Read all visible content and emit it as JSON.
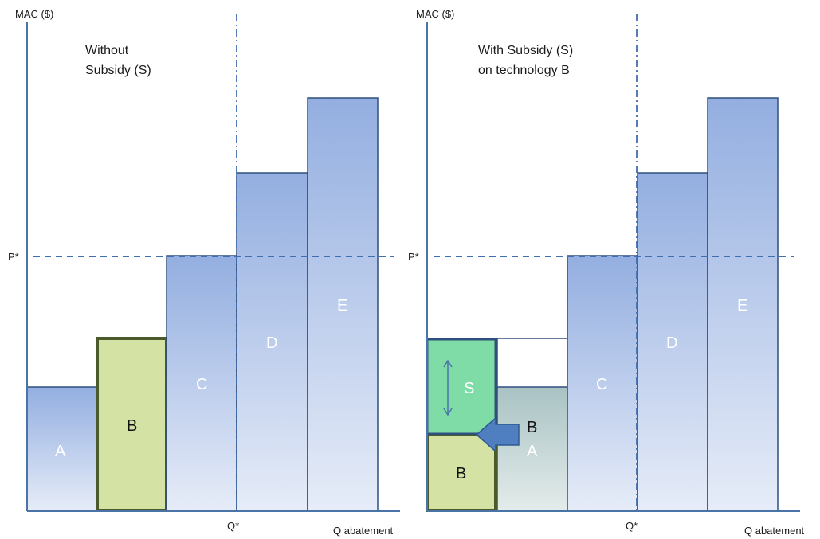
{
  "panels": [
    {
      "id": "left",
      "y_axis_label": "MAC ($)",
      "x_axis_label": "Q abatement",
      "price_label": "P*",
      "quantity_label": "Q*",
      "title_lines": [
        "Without",
        "Subsidy (S)"
      ],
      "bars": [
        {
          "label": "A"
        },
        {
          "label": "B"
        },
        {
          "label": "C"
        },
        {
          "label": "D"
        },
        {
          "label": "E"
        }
      ]
    },
    {
      "id": "right",
      "y_axis_label": "MAC ($)",
      "x_axis_label": "Q abatement",
      "price_label": "P*",
      "quantity_label": "Q*",
      "title_lines": [
        "With Subsidy (S)",
        "on technology B"
      ],
      "bars": [
        {
          "label": "B"
        },
        {
          "label": "S"
        },
        {
          "label": "B"
        },
        {
          "label": "A"
        },
        {
          "label": "C"
        },
        {
          "label": "D"
        },
        {
          "label": "E"
        }
      ]
    }
  ],
  "colors": {
    "axis": "#4a74a8",
    "bar_blue_top": "#93aee0",
    "bar_blue_bottom": "#e6ecf8",
    "bar_border": "#2f4f7d",
    "tech_b_fill": "#d4e3a4",
    "subsidy_fill": "#7fdca6",
    "arrow": "#4f7fc0"
  }
}
